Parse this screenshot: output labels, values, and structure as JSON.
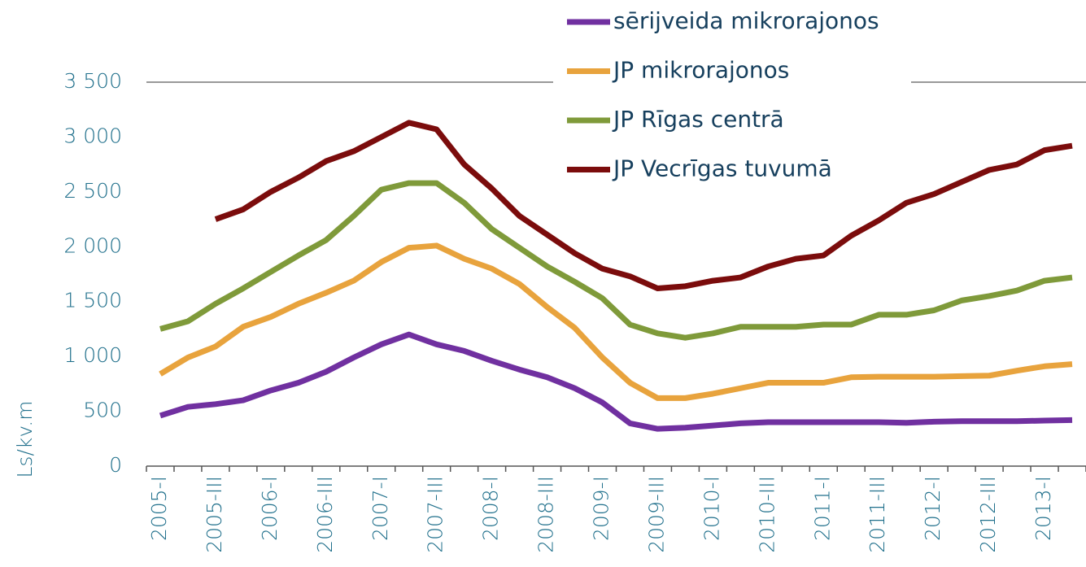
{
  "chart_data": {
    "type": "line",
    "y_label": "Ls/kv.m",
    "categories": [
      "2005-I",
      null,
      "2005-III",
      null,
      "2006-I",
      null,
      "2006-III",
      null,
      "2007-I",
      null,
      "2007-III",
      null,
      "2008-I",
      null,
      "2008-III",
      null,
      "2009-I",
      null,
      "2009-III",
      null,
      "2010-I",
      null,
      "2010-III",
      null,
      "2011-I",
      null,
      "2011-III",
      null,
      "2012-I",
      null,
      "2012-III",
      null,
      "2013-I",
      null
    ],
    "series": [
      {
        "name": "sērijveida mikrorajonos",
        "color": "#7030a0",
        "values": [
          460,
          540,
          565,
          600,
          690,
          760,
          860,
          990,
          1110,
          1200,
          1110,
          1050,
          960,
          880,
          810,
          710,
          580,
          390,
          340,
          350,
          370,
          390,
          400,
          400,
          400,
          400,
          400,
          395,
          405,
          410,
          410,
          410,
          415,
          420
        ]
      },
      {
        "name": "JP mikrorajonos",
        "color": "#e8a33d",
        "values": [
          840,
          990,
          1090,
          1270,
          1360,
          1480,
          1580,
          1690,
          1860,
          1990,
          2010,
          1890,
          1800,
          1660,
          1450,
          1260,
          990,
          760,
          620,
          620,
          660,
          710,
          760,
          760,
          760,
          810,
          815,
          815,
          815,
          820,
          825,
          870,
          910,
          930
        ]
      },
      {
        "name": "JP Rīgas centrā",
        "color": "#7f9a3a",
        "values": [
          1250,
          1320,
          1480,
          1620,
          1770,
          1920,
          2060,
          2280,
          2520,
          2580,
          2580,
          2400,
          2160,
          1990,
          1820,
          1680,
          1530,
          1290,
          1210,
          1170,
          1210,
          1270,
          1270,
          1270,
          1290,
          1290,
          1380,
          1380,
          1420,
          1510,
          1550,
          1600,
          1690,
          1720
        ]
      },
      {
        "name": "JP Vecrīgas tuvumā",
        "color": "#7b0c0c",
        "values": [
          null,
          null,
          2250,
          2340,
          2500,
          2630,
          2780,
          2870,
          3000,
          3130,
          3070,
          2750,
          2530,
          2280,
          2110,
          1940,
          1800,
          1730,
          1620,
          1640,
          1690,
          1720,
          1820,
          1890,
          1920,
          2100,
          2240,
          2400,
          2480,
          2590,
          2700,
          2750,
          2880,
          2920
        ]
      }
    ],
    "ylim": [
      0,
      3500
    ],
    "yticks": [
      0,
      500,
      {
        "value": 1000,
        "label": "1 000"
      },
      {
        "value": 1500,
        "label": "1 500"
      },
      {
        "value": 2000,
        "label": "2 000"
      },
      {
        "value": 2500,
        "label": "2 500"
      },
      {
        "value": 3000,
        "label": "3 000"
      },
      {
        "value": 3500,
        "label": "3 500"
      }
    ],
    "legend": "top-right"
  }
}
